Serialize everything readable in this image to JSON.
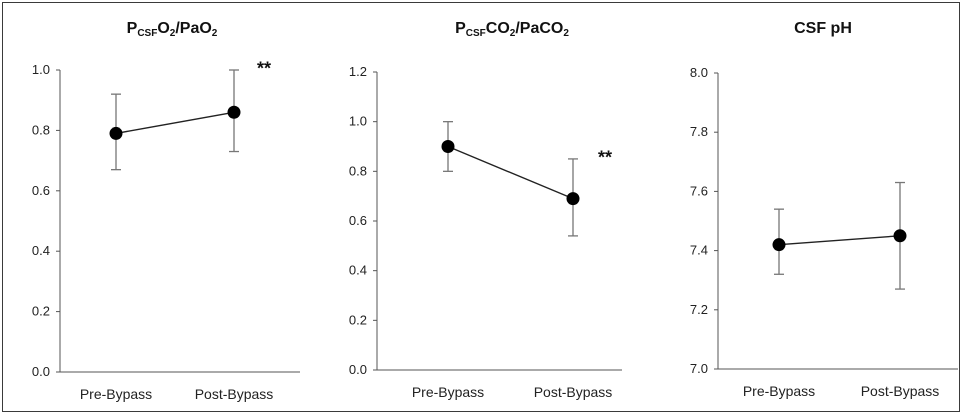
{
  "chart_data": [
    {
      "type": "line",
      "title": "PCSFO2/PaO2",
      "title_parts": [
        {
          "text": "P",
          "style": "normal"
        },
        {
          "text": "CSF",
          "style": "sub"
        },
        {
          "text": "O",
          "style": "normal"
        },
        {
          "text": "2",
          "style": "sub"
        },
        {
          "text": "/PaO",
          "style": "normal"
        },
        {
          "text": "2",
          "style": "sub"
        }
      ],
      "categories": [
        "Pre-Bypass",
        "Post-Bypass"
      ],
      "values": [
        0.79,
        0.86
      ],
      "error": [
        [
          0.67,
          0.92
        ],
        [
          0.73,
          1.0
        ]
      ],
      "significance": "**",
      "significance_at": 1,
      "ylim": [
        0.0,
        1.0
      ],
      "yticks": [
        "0.0",
        "0.2",
        "0.4",
        "0.6",
        "0.8",
        "1.0"
      ],
      "xlabel": "",
      "ylabel": "",
      "grid": false,
      "category_color": "#222222"
    },
    {
      "type": "line",
      "title": "PCSFCO2/PaCO2",
      "title_parts": [
        {
          "text": "P",
          "style": "normal"
        },
        {
          "text": "CSF",
          "style": "sub"
        },
        {
          "text": "CO",
          "style": "normal"
        },
        {
          "text": "2",
          "style": "sub"
        },
        {
          "text": "/PaCO",
          "style": "normal"
        },
        {
          "text": "2",
          "style": "sub"
        }
      ],
      "categories": [
        "Pre-Bypass",
        "Post-Bypass"
      ],
      "values": [
        0.9,
        0.69
      ],
      "error": [
        [
          0.8,
          1.0
        ],
        [
          0.54,
          0.85
        ]
      ],
      "significance": "**",
      "significance_at": 1,
      "ylim": [
        0.0,
        1.2
      ],
      "yticks": [
        "0.0",
        "0.2",
        "0.4",
        "0.6",
        "0.8",
        "1.0",
        "1.2"
      ],
      "xlabel": "",
      "ylabel": "",
      "grid": false,
      "category_color": "#666666"
    },
    {
      "type": "line",
      "title": "CSF pH",
      "title_parts": [
        {
          "text": "CSF pH",
          "style": "normal"
        }
      ],
      "categories": [
        "Pre-Bypass",
        "Post-Bypass"
      ],
      "values": [
        7.42,
        7.45
      ],
      "error": [
        [
          7.32,
          7.54
        ],
        [
          7.27,
          7.63
        ]
      ],
      "significance": "",
      "significance_at": 1,
      "ylim": [
        7.0,
        8.0
      ],
      "yticks": [
        "7.0",
        "7.2",
        "7.4",
        "7.6",
        "7.8",
        "8.0"
      ],
      "xlabel": "",
      "ylabel": "",
      "grid": false,
      "category_color": "#222222"
    }
  ]
}
